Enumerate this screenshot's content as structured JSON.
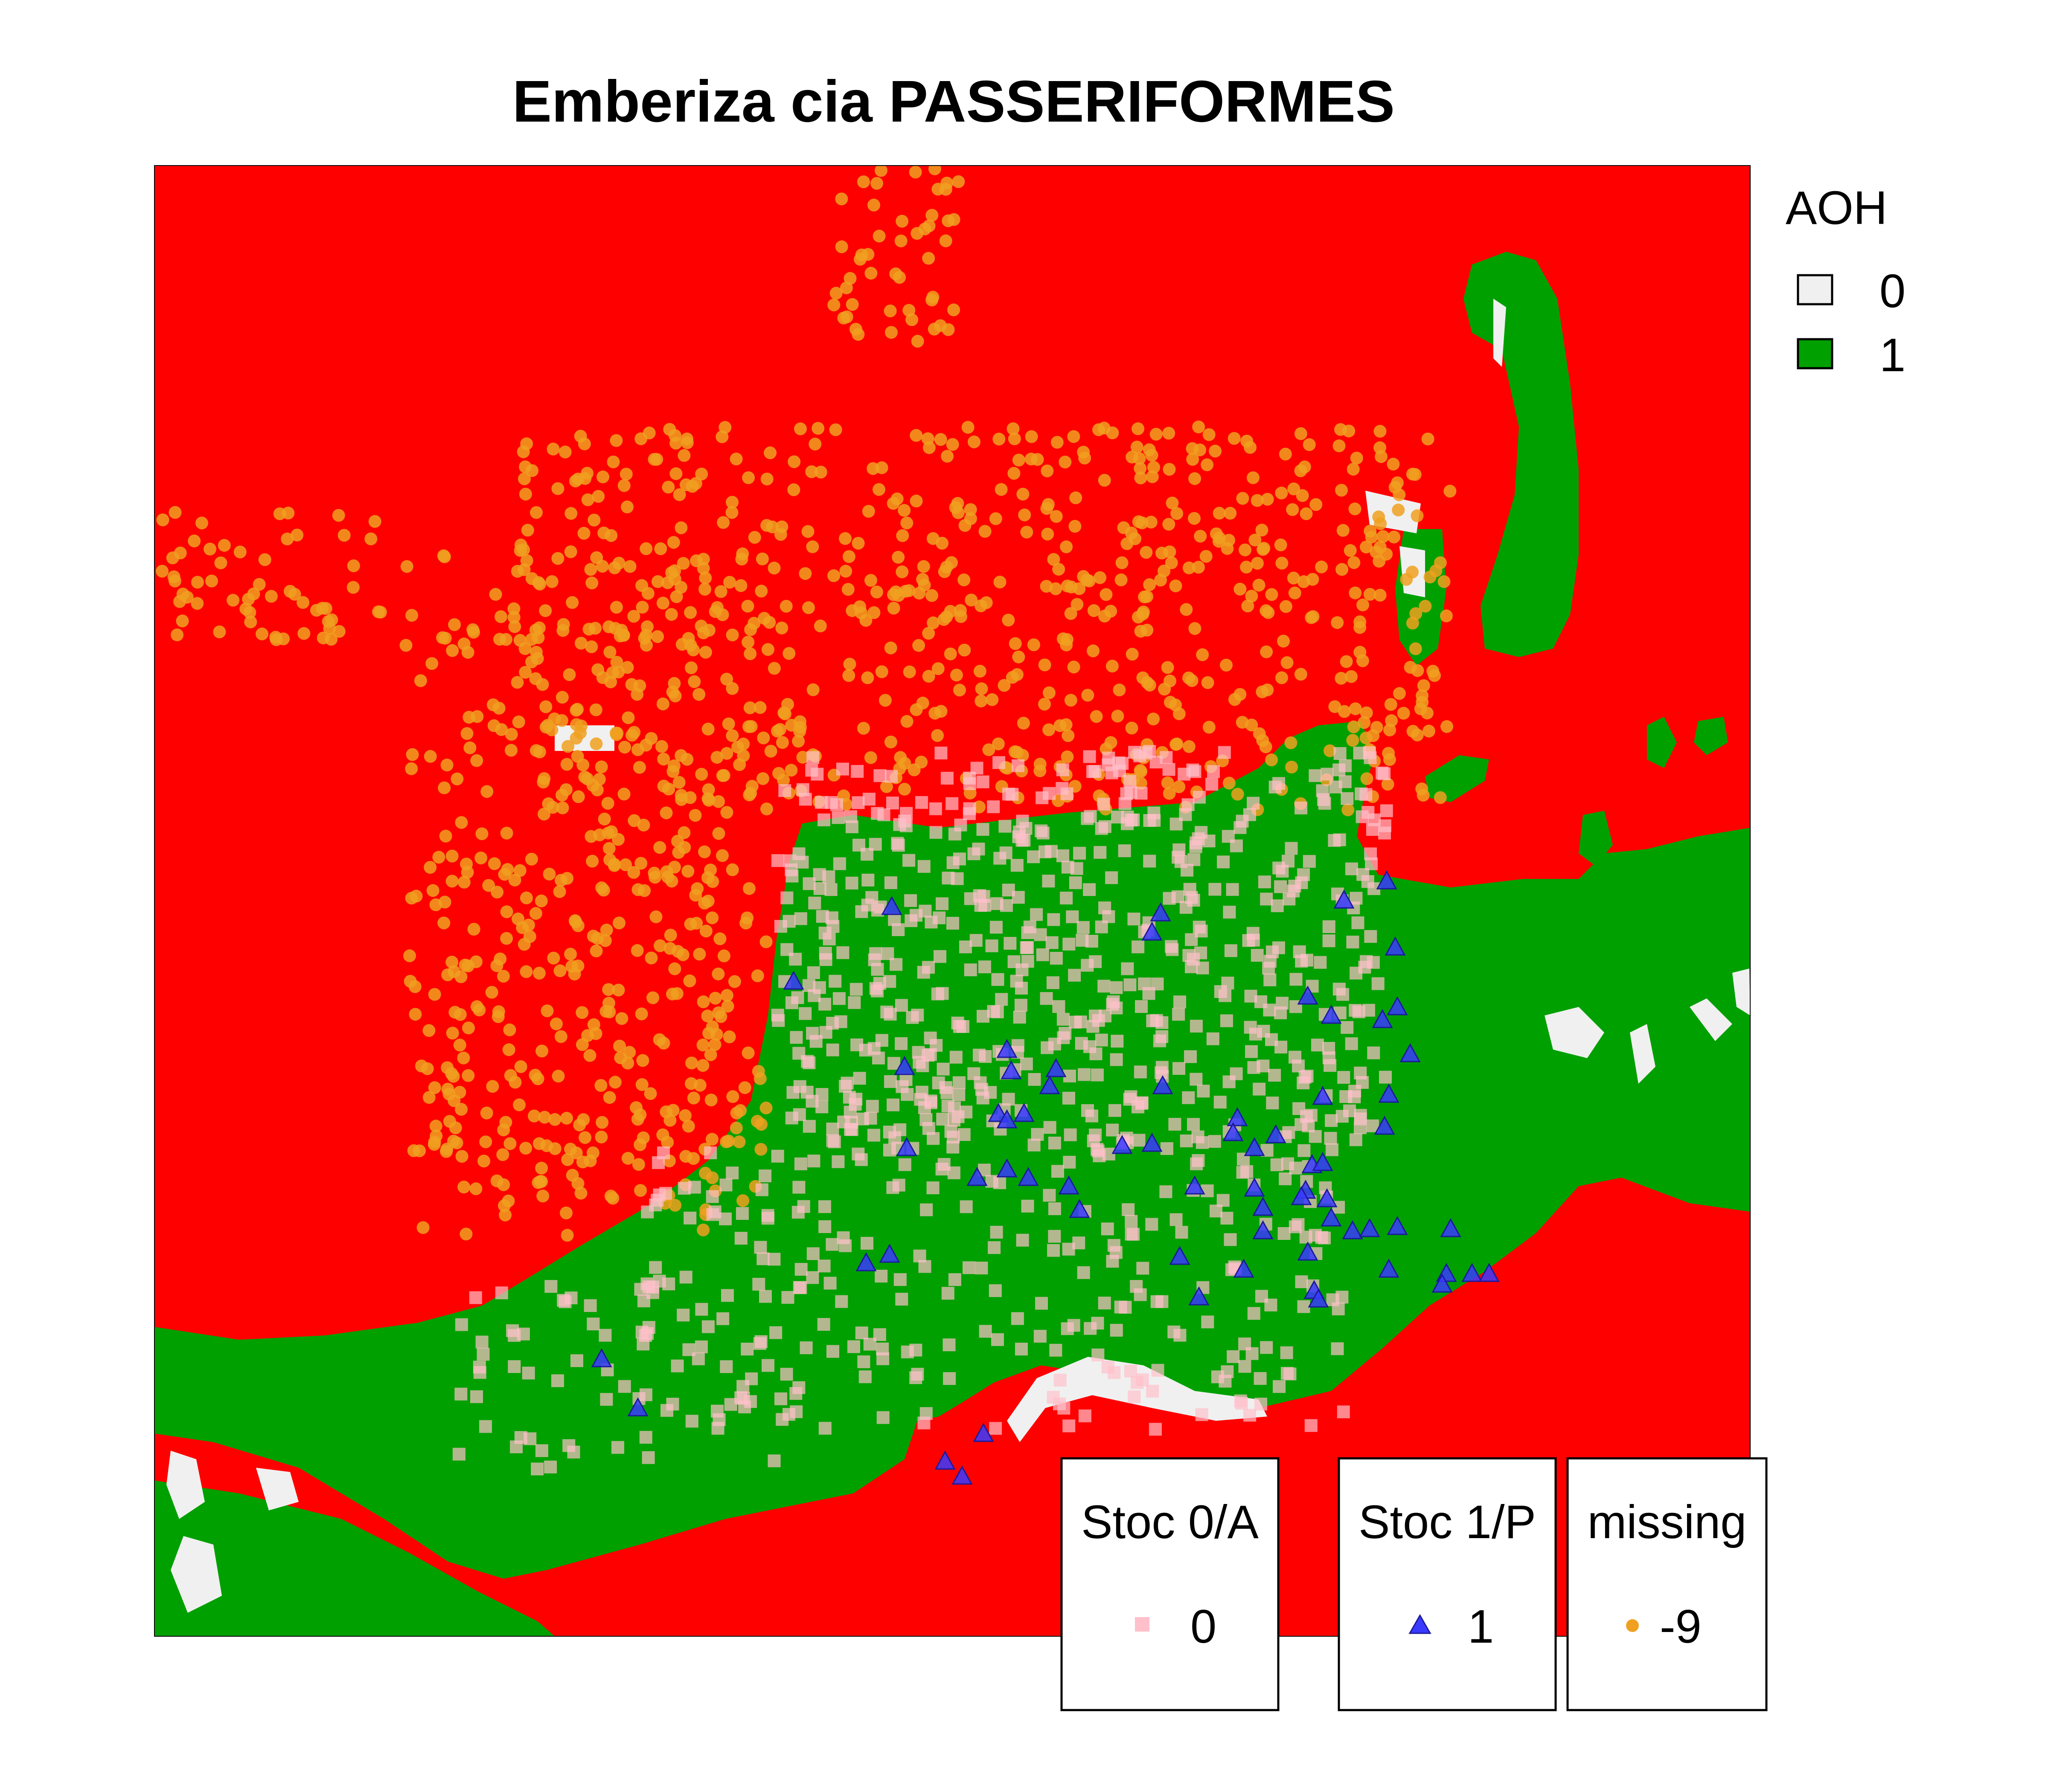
{
  "title": "Emberiza cia PASSERIFORMES",
  "aoh_legend": {
    "title": "AOH",
    "items": [
      {
        "label": "0",
        "color": "#f0f0f0"
      },
      {
        "label": "1",
        "color": "#00a000"
      }
    ]
  },
  "background_color": "#ff0000",
  "point_legends": [
    {
      "title": "Stoc 0/A",
      "label": "0",
      "symbol": "square",
      "color": "#ffc0cb"
    },
    {
      "title": "Stoc 1/P",
      "label": "1",
      "symbol": "triangle",
      "color": "#3a3aff"
    },
    {
      "title": "missing",
      "label": "-9",
      "symbol": "circle",
      "color": "#f0a020"
    }
  ]
}
